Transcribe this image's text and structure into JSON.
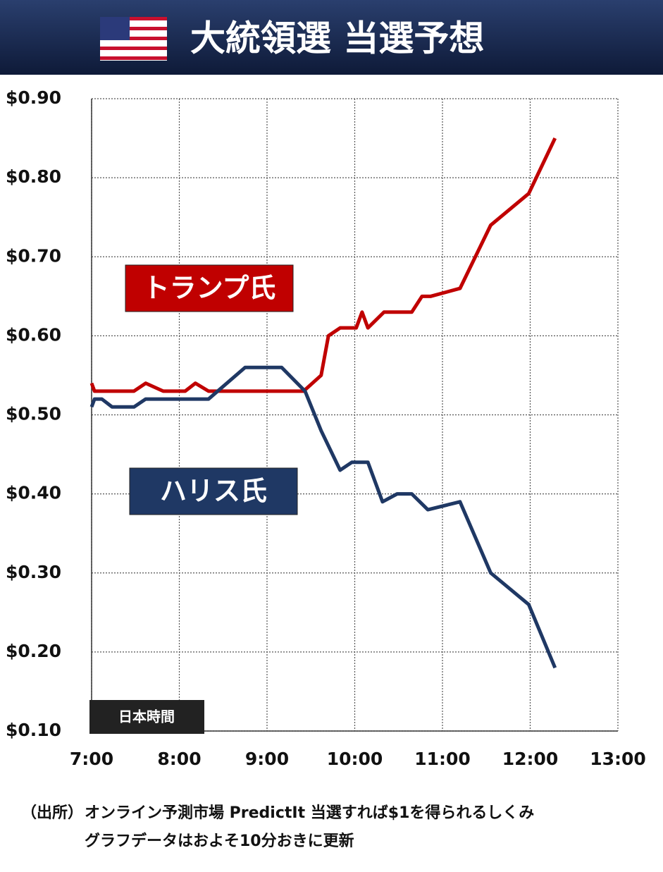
{
  "chart_data": {
    "type": "line",
    "title": "大統領選 当選予想",
    "x_label": "日本時間",
    "source": [
      "（出所）",
      "オンライン予測市場 PredictIt  当選すれば$1を得られるしくみ",
      "グラフデータはおよそ10分おきに更新"
    ],
    "xlim": [
      420,
      780
    ],
    "xticks": [
      {
        "value": 420,
        "label": "7:00"
      },
      {
        "value": 480,
        "label": "8:00"
      },
      {
        "value": 540,
        "label": "9:00"
      },
      {
        "value": 600,
        "label": "10:00"
      },
      {
        "value": 660,
        "label": "11:00"
      },
      {
        "value": 720,
        "label": "12:00"
      },
      {
        "value": 780,
        "label": "13:00"
      }
    ],
    "ylim": [
      0.1,
      0.9
    ],
    "yticks": [
      {
        "value": 0.1,
        "label": "$0.10"
      },
      {
        "value": 0.2,
        "label": "$0.20"
      },
      {
        "value": 0.3,
        "label": "$0.30"
      },
      {
        "value": 0.4,
        "label": "$0.40"
      },
      {
        "value": 0.5,
        "label": "$0.50"
      },
      {
        "value": 0.6,
        "label": "$0.60"
      },
      {
        "value": 0.7,
        "label": "$0.70"
      },
      {
        "value": 0.8,
        "label": "$0.80"
      },
      {
        "value": 0.9,
        "label": "$0.90"
      }
    ],
    "grid": true,
    "series": [
      {
        "name": "トランプ氏",
        "color": "#c00000",
        "x": [
          420,
          422,
          449,
          457,
          469,
          484,
          491,
          500,
          565,
          577,
          582,
          590,
          601,
          605,
          609,
          620,
          639,
          646,
          652,
          672,
          693,
          719,
          737
        ],
        "values": [
          0.54,
          0.53,
          0.53,
          0.54,
          0.53,
          0.53,
          0.54,
          0.53,
          0.53,
          0.55,
          0.6,
          0.61,
          0.61,
          0.63,
          0.61,
          0.63,
          0.63,
          0.65,
          0.65,
          0.66,
          0.74,
          0.78,
          0.85
        ]
      },
      {
        "name": "ハリス氏",
        "color": "#1f3864",
        "x": [
          420,
          422,
          427,
          434,
          449,
          457,
          500,
          525,
          550,
          566,
          577,
          590,
          598,
          609,
          619,
          629,
          639,
          650,
          672,
          693,
          719,
          737
        ],
        "values": [
          0.51,
          0.52,
          0.52,
          0.51,
          0.51,
          0.52,
          0.52,
          0.56,
          0.56,
          0.53,
          0.48,
          0.43,
          0.44,
          0.44,
          0.39,
          0.4,
          0.4,
          0.38,
          0.39,
          0.3,
          0.26,
          0.18
        ]
      }
    ]
  }
}
